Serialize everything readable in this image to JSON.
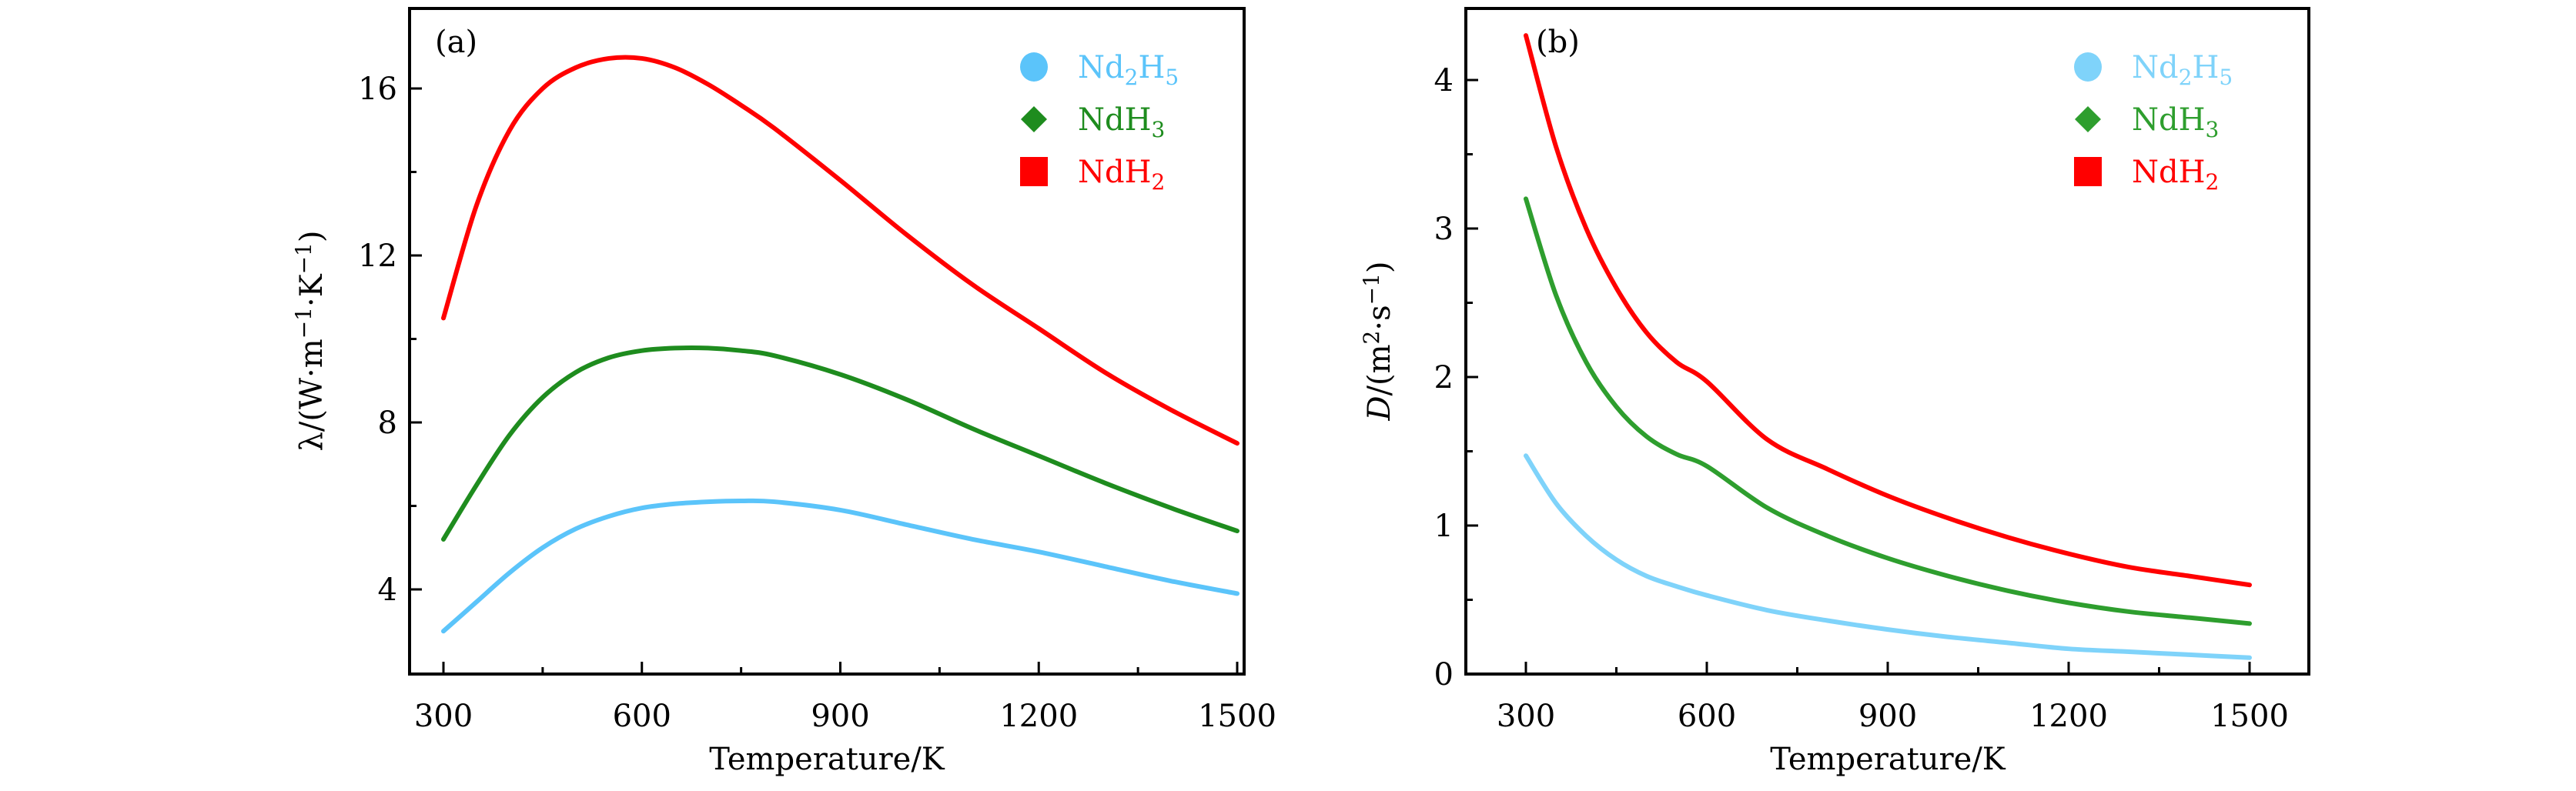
{
  "chart_data": [
    {
      "type": "line",
      "panel_label": "(a)",
      "title": "",
      "xlabel": "Temperature/K",
      "ylabel_parts": {
        "main": "λ/(W·m",
        "sup1": "−1",
        "mid": "·K",
        "sup2": "−1",
        "end": ")"
      },
      "ylabel": "λ/(W·m⁻¹·K⁻¹)",
      "xlim": [
        270,
        1520
      ],
      "ylim": [
        2,
        18
      ],
      "xticks": [
        300,
        600,
        900,
        1200,
        1500
      ],
      "xticks_minor": [
        450,
        750,
        1050,
        1350
      ],
      "yticks": [
        4,
        8,
        12,
        16
      ],
      "yticks_minor": [
        6,
        10,
        14
      ],
      "grid": false,
      "legend_position": "top-right",
      "x": [
        300,
        350,
        400,
        450,
        500,
        550,
        600,
        650,
        700,
        750,
        800,
        900,
        1000,
        1100,
        1200,
        1300,
        1400,
        1500
      ],
      "series": [
        {
          "name": "Nd2H5",
          "label_main": "Nd",
          "sub1": "2",
          "label_mid": "H",
          "sub2": "5",
          "color": "#5BC4FA",
          "marker": "circle",
          "values": [
            3.0,
            3.7,
            4.4,
            5.0,
            5.45,
            5.75,
            5.95,
            6.05,
            6.1,
            6.12,
            6.1,
            5.9,
            5.55,
            5.2,
            4.9,
            4.55,
            4.2,
            3.9
          ]
        },
        {
          "name": "NdH3",
          "label_main": "NdH",
          "sub1": "3",
          "label_mid": "",
          "sub2": "",
          "color": "#1E8C1E",
          "marker": "diamond",
          "values": [
            5.2,
            6.5,
            7.7,
            8.6,
            9.2,
            9.55,
            9.72,
            9.78,
            9.78,
            9.72,
            9.6,
            9.15,
            8.55,
            7.85,
            7.2,
            6.55,
            5.95,
            5.4
          ]
        },
        {
          "name": "NdH2",
          "label_main": "NdH",
          "sub1": "2",
          "label_mid": "",
          "sub2": "",
          "color": "#FF0000",
          "marker": "square",
          "values": [
            10.5,
            13.2,
            15.0,
            16.0,
            16.5,
            16.72,
            16.72,
            16.5,
            16.1,
            15.6,
            15.05,
            13.8,
            12.5,
            11.3,
            10.25,
            9.2,
            8.3,
            7.5
          ]
        }
      ]
    },
    {
      "type": "line",
      "panel_label": "(b)",
      "title": "",
      "xlabel": "Temperature/K",
      "ylabel_parts": {
        "main": "D",
        "end": "/(m",
        "sup1": "2",
        "mid": "·s",
        "sup2": "−1",
        "close": ")"
      },
      "ylabel": "D/(m²·s⁻¹)",
      "xlim": [
        200,
        1600
      ],
      "ylim": [
        0,
        4.5
      ],
      "xticks": [
        300,
        600,
        900,
        1200,
        1500
      ],
      "xticks_minor": [
        450,
        750,
        1050,
        1350
      ],
      "yticks": [
        0,
        1,
        2,
        3,
        4
      ],
      "yticks_minor": [
        0.5,
        1.5,
        2.5,
        3.5
      ],
      "grid": false,
      "legend_position": "top-right",
      "x": [
        300,
        350,
        400,
        450,
        500,
        550,
        600,
        700,
        800,
        900,
        1000,
        1100,
        1200,
        1300,
        1400,
        1500
      ],
      "series": [
        {
          "name": "Nd2H5",
          "label_main": "Nd",
          "sub1": "2",
          "label_mid": "H",
          "sub2": "5",
          "color": "#7FD3FA",
          "marker": "circle",
          "values": [
            1.47,
            1.15,
            0.93,
            0.77,
            0.66,
            0.59,
            0.53,
            0.43,
            0.36,
            0.3,
            0.25,
            0.21,
            0.17,
            0.15,
            0.13,
            0.11
          ]
        },
        {
          "name": "NdH3",
          "label_main": "NdH",
          "sub1": "3",
          "label_mid": "",
          "sub2": "",
          "color": "#2E9E2E",
          "marker": "diamond",
          "values": [
            3.2,
            2.55,
            2.1,
            1.8,
            1.6,
            1.48,
            1.4,
            1.12,
            0.93,
            0.78,
            0.66,
            0.56,
            0.48,
            0.42,
            0.38,
            0.34
          ]
        },
        {
          "name": "NdH2",
          "label_main": "NdH",
          "sub1": "2",
          "label_mid": "",
          "sub2": "",
          "color": "#FF0000",
          "marker": "square",
          "values": [
            4.3,
            3.55,
            3.0,
            2.6,
            2.3,
            2.1,
            1.97,
            1.58,
            1.38,
            1.2,
            1.05,
            0.92,
            0.81,
            0.72,
            0.66,
            0.6
          ]
        }
      ]
    }
  ]
}
